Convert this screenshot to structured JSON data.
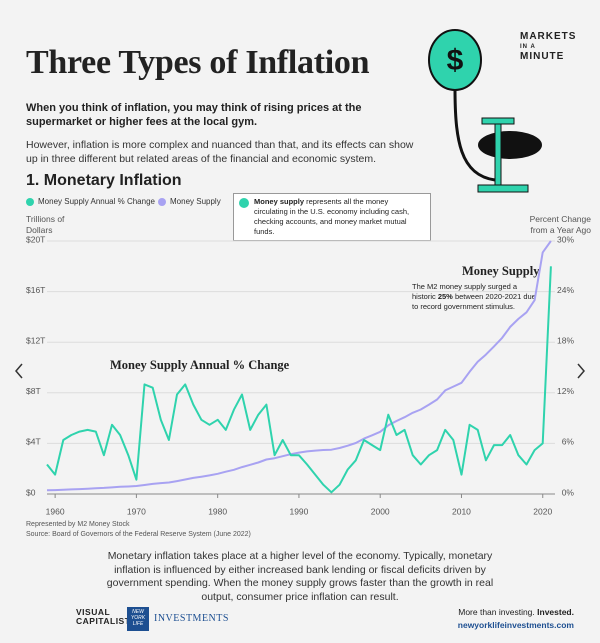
{
  "page": {
    "title": "Three Types of Inflation",
    "logo": [
      "MARKETS",
      "IN A",
      "MINUTE"
    ],
    "icon_symbol": "$",
    "intro_bold": "When you think of inflation, you may think of rising prices at the supermarket or higher fees at the local gym.",
    "intro": "However, inflation is more complex and nuanced than that, and its effects can show up in three different but related areas of the financial and economic system.",
    "body": "Monetary inflation takes place at a higher level of the economy. Typically, monetary inflation is influenced by either increased bank lending or fiscal deficits driven by government spending. When the money supply grows faster than the growth in real output, consumer price inflation can result.",
    "footer": {
      "brand": [
        "VISUAL",
        "CAPITALIST"
      ],
      "partner_mark": [
        "NEW",
        "YORK",
        "LIFE"
      ],
      "partner": "INVESTMENTS",
      "tagline": [
        "More than investing. ",
        "Invested."
      ],
      "url": "newyorklifeinvestments.com"
    }
  },
  "chart_data": {
    "type": "line",
    "title": "1. Monetary Inflation",
    "info_box": {
      "bold": "Money supply",
      "text": " represents all the money circulating in the U.S. economy including cash, checking accounts, and money market mutual funds."
    },
    "y_label": "Trillions of Dollars",
    "y2_label": "Percent Change from a Year Ago",
    "annotations": [
      {
        "text": "Money Supply Annual % Change"
      },
      {
        "title": "Money Supply",
        "text": [
          "The M2 money supply surged a historic ",
          "25%",
          " between 2020-2021 due to record government stimulus."
        ]
      }
    ],
    "notes": [
      "Represented by M2 Money Stock",
      "Source: Board of Governors of the Federal Reserve System (June 2022)"
    ],
    "grid": true,
    "xlim": [
      1959,
      2022
    ],
    "xticks": [
      1960,
      1970,
      1980,
      1990,
      2000,
      2010,
      2020
    ],
    "ylim": [
      0,
      20
    ],
    "yticks": [
      {
        "value": 0,
        "label": "$0"
      },
      {
        "value": 4,
        "label": "$4T"
      },
      {
        "value": 8,
        "label": "$8T"
      },
      {
        "value": 12,
        "label": "$12T"
      },
      {
        "value": 16,
        "label": "$16T"
      },
      {
        "value": 20,
        "label": "$20T"
      }
    ],
    "y2lim": [
      0,
      30
    ],
    "y2ticks": [
      {
        "value": 0,
        "label": "0%"
      },
      {
        "value": 6,
        "label": "6%"
      },
      {
        "value": 12,
        "label": "12%"
      },
      {
        "value": 18,
        "label": "18%"
      },
      {
        "value": 24,
        "label": "24%"
      },
      {
        "value": 30,
        "label": "30%"
      }
    ],
    "x": [
      1959,
      1960,
      1961,
      1962,
      1963,
      1964,
      1965,
      1966,
      1967,
      1968,
      1969,
      1970,
      1971,
      1972,
      1973,
      1974,
      1975,
      1976,
      1977,
      1978,
      1979,
      1980,
      1981,
      1982,
      1983,
      1984,
      1985,
      1986,
      1987,
      1988,
      1989,
      1990,
      1991,
      1992,
      1993,
      1994,
      1995,
      1996,
      1997,
      1998,
      1999,
      2000,
      2001,
      2002,
      2003,
      2004,
      2005,
      2006,
      2007,
      2008,
      2009,
      2010,
      2011,
      2012,
      2013,
      2014,
      2015,
      2016,
      2017,
      2018,
      2019,
      2020,
      2021
    ],
    "series": [
      {
        "name": "Money Supply Annual % Change",
        "color": "#2fd3ad",
        "axis": "y2",
        "values": [
          3.5,
          2.3,
          6.4,
          7,
          7.4,
          7.6,
          7.4,
          4.6,
          8.2,
          7,
          4.6,
          1.7,
          13,
          12.6,
          8.8,
          6.4,
          11.8,
          13,
          10.6,
          8.8,
          8.2,
          8.8,
          7.6,
          10,
          11.8,
          7.6,
          9.4,
          10.6,
          4.6,
          6.4,
          4.6,
          4.6,
          3.5,
          2.3,
          1.1,
          0.2,
          1.1,
          2.9,
          4,
          6.4,
          5.8,
          5.2,
          9.4,
          7,
          7.6,
          4.6,
          3.5,
          4.6,
          5.2,
          7.6,
          6.4,
          2.3,
          8.2,
          7.6,
          4,
          5.8,
          5.8,
          7,
          4.6,
          3.5,
          5.2,
          6,
          27
        ]
      },
      {
        "name": "Money Supply",
        "color": "#a8a2f2",
        "values": [
          0.29,
          0.31,
          0.33,
          0.36,
          0.39,
          0.42,
          0.46,
          0.48,
          0.52,
          0.57,
          0.59,
          0.63,
          0.71,
          0.8,
          0.86,
          0.91,
          1.02,
          1.15,
          1.27,
          1.37,
          1.47,
          1.6,
          1.76,
          1.91,
          2.13,
          2.31,
          2.49,
          2.73,
          2.83,
          2.99,
          3.15,
          3.27,
          3.37,
          3.43,
          3.48,
          3.5,
          3.64,
          3.82,
          4.03,
          4.38,
          4.64,
          4.92,
          5.43,
          5.77,
          6.07,
          6.42,
          6.68,
          7.07,
          7.47,
          8.19,
          8.49,
          8.79,
          9.66,
          10.45,
          11.02,
          11.67,
          12.34,
          13.21,
          13.84,
          14.36,
          15.32,
          19.1,
          20
        ]
      }
    ]
  }
}
